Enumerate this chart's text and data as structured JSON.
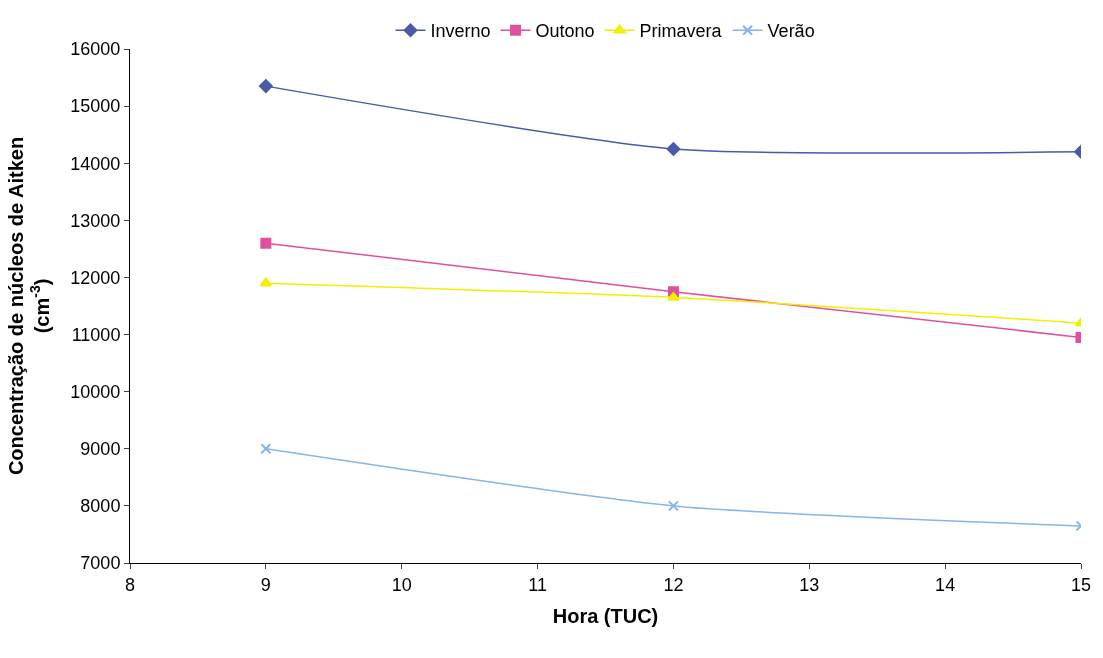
{
  "chart_data": {
    "type": "line",
    "xlabel": "Hora (TUC)",
    "ylabel": "Concentração de núcleos de Aitken\n(cm$^{-3}$)",
    "x": [
      9,
      12,
      15
    ],
    "xlim": [
      8,
      15
    ],
    "xticks": [
      8,
      9,
      10,
      11,
      12,
      13,
      14,
      15
    ],
    "ylim": [
      7000,
      16000
    ],
    "yticks": [
      7000,
      8000,
      9000,
      10000,
      11000,
      12000,
      13000,
      14000,
      15000,
      16000
    ],
    "grid": false,
    "legend": "top",
    "line_style": "solid",
    "series": [
      {
        "name": "Inverno",
        "color": "#4a5aa8",
        "marker": "diamond",
        "values": [
          15350,
          14250,
          14200
        ]
      },
      {
        "name": "Outono",
        "color": "#e0509c",
        "marker": "square",
        "values": [
          12600,
          11750,
          10950
        ]
      },
      {
        "name": "Primavera",
        "color": "#f0f000",
        "marker": "triangle",
        "values": [
          11900,
          11650,
          11200
        ]
      },
      {
        "name": "Verão",
        "color": "#88b4e8",
        "marker": "cross",
        "values": [
          9000,
          8000,
          7650
        ]
      }
    ]
  }
}
